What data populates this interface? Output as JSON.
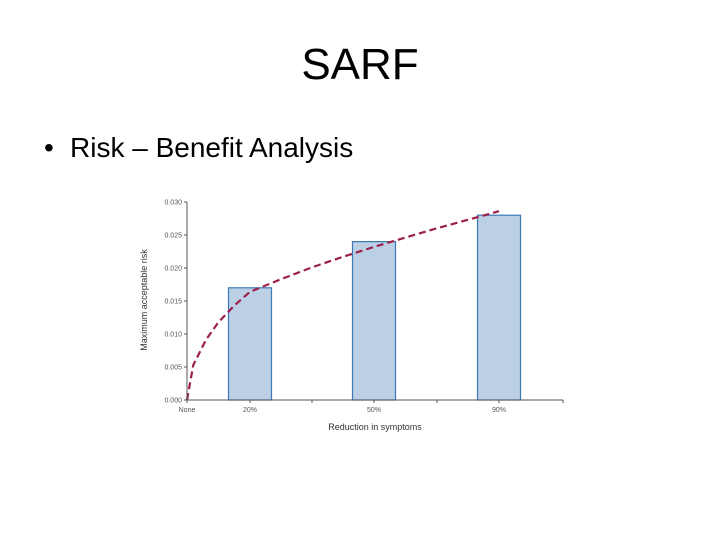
{
  "slide": {
    "title": "SARF",
    "bullet": "•",
    "bullet_text": "Risk – Benefit Analysis"
  },
  "chart_data": {
    "type": "bar",
    "xlabel": "Reduction in symptoms",
    "ylabel": "Maximum acceptable risk",
    "categories": [
      "None",
      "20%",
      "50%",
      "90%"
    ],
    "values": [
      null,
      0.017,
      0.024,
      0.028
    ],
    "ylim": [
      0,
      0.03
    ],
    "yticks": [
      "0.000",
      "0.005",
      "0.010",
      "0.015",
      "0.020",
      "0.025",
      "0.030"
    ],
    "grid": false,
    "curve": {
      "style": "dashed",
      "x": [
        0,
        0.1,
        0.3,
        0.5,
        0.75,
        1.0,
        1.25,
        1.5,
        1.75,
        2.0,
        2.25,
        2.5,
        2.75,
        3.0
      ],
      "y": [
        0,
        0.0053,
        0.0091,
        0.0118,
        0.0143,
        0.0164,
        0.0183,
        0.0201,
        0.0217,
        0.0232,
        0.0246,
        0.026,
        0.0273,
        0.0286
      ]
    },
    "colors": {
      "bar_fill": "#bcd0e5",
      "bar_stroke": "#3b78b4",
      "curve": "#9c1f4c",
      "axis": "#555555"
    }
  }
}
